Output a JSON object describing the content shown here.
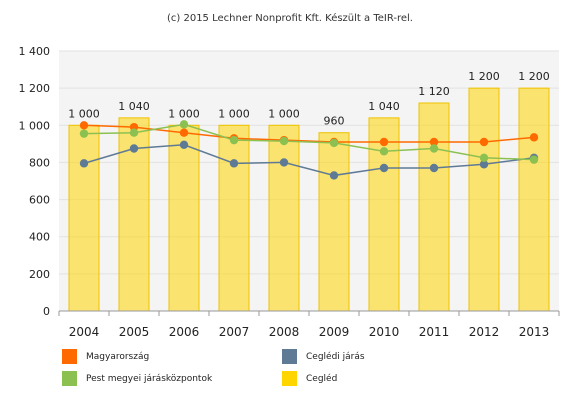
{
  "credit": "(c) 2015 Lechner Nonprofit Kft. Készült a TeIR-rel.",
  "chart_data": {
    "type": "bar",
    "categories": [
      "2004",
      "2005",
      "2006",
      "2007",
      "2008",
      "2009",
      "2010",
      "2011",
      "2012",
      "2013"
    ],
    "ylim": [
      0,
      1400
    ],
    "yticks": [
      0,
      200,
      400,
      600,
      800,
      1000,
      1200,
      1400
    ],
    "ytick_labels": [
      "0",
      "200",
      "400",
      "600",
      "800",
      "1 000",
      "1 200",
      "1 400"
    ],
    "grid": true,
    "legend_position": "bottom",
    "bar_series": {
      "name": "Cegléd",
      "color": "#ffd500",
      "values": [
        1000,
        1040,
        1000,
        1000,
        1000,
        960,
        1040,
        1120,
        1200,
        1200
      ],
      "labels": [
        "1 000",
        "1 040",
        "1 000",
        "1 000",
        "1 000",
        "960",
        "1 040",
        "1 120",
        "1 200",
        "1 200"
      ]
    },
    "line_series": [
      {
        "name": "Magyarország",
        "color": "#ff6a00",
        "values": [
          1000,
          990,
          960,
          930,
          920,
          910,
          910,
          910,
          910,
          935
        ]
      },
      {
        "name": "Ceglédi járás",
        "color": "#5f7a95",
        "values": [
          795,
          875,
          895,
          795,
          800,
          730,
          770,
          770,
          790,
          825
        ]
      },
      {
        "name": "Pest megyei járásközpontok",
        "color": "#8cc152",
        "values": [
          955,
          960,
          1005,
          920,
          915,
          905,
          860,
          875,
          825,
          815
        ]
      }
    ]
  },
  "legend": [
    {
      "label": "Magyarország",
      "color": "#ff6a00"
    },
    {
      "label": "Ceglédi járás",
      "color": "#5f7a95"
    },
    {
      "label": "Pest megyei járásközpontok",
      "color": "#8cc152"
    },
    {
      "label": "Cegléd",
      "color": "#ffd500"
    }
  ]
}
